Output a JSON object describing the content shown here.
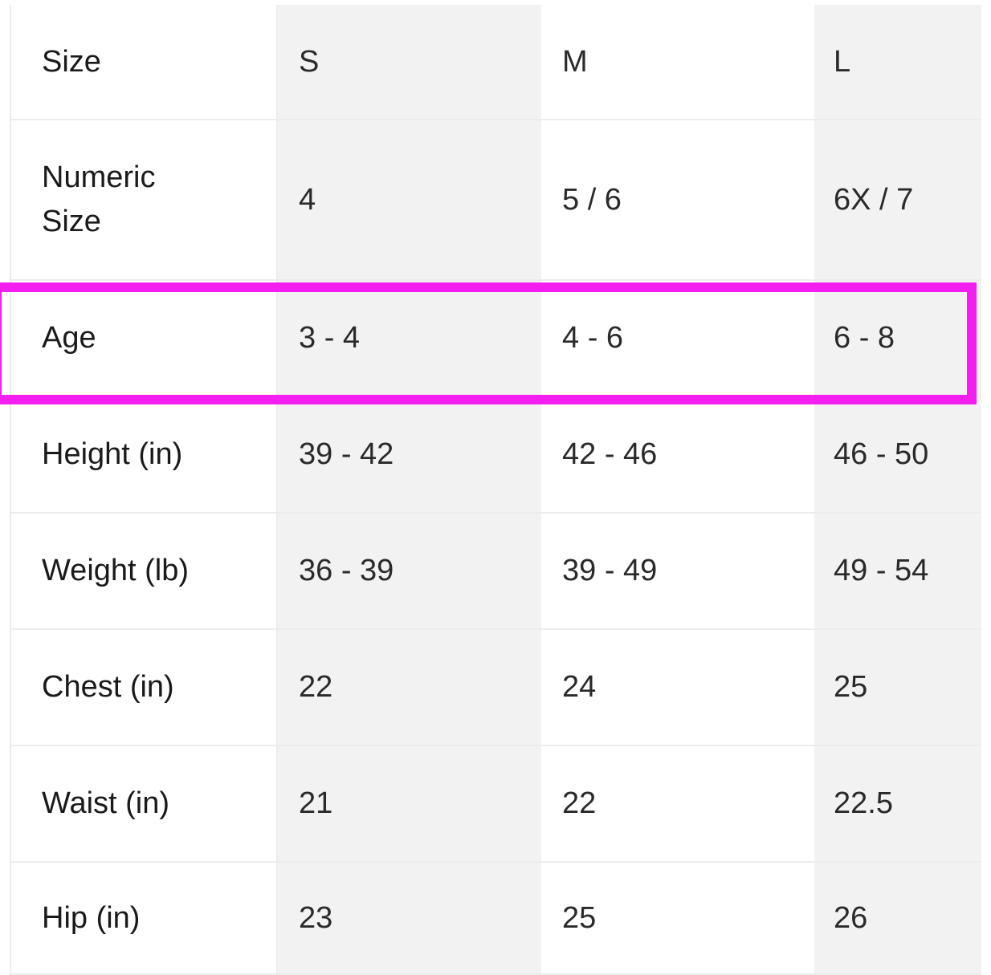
{
  "table": {
    "rows": [
      {
        "label": "Size",
        "values": [
          "S",
          "M",
          "L"
        ]
      },
      {
        "label": "Numeric Size",
        "values": [
          "4",
          "5 / 6",
          "6X / 7"
        ]
      },
      {
        "label": "Age",
        "values": [
          "3 - 4",
          "4 - 6",
          "6 - 8"
        ]
      },
      {
        "label": "Height (in)",
        "values": [
          "39 - 42",
          "42 - 46",
          "46 - 50"
        ]
      },
      {
        "label": "Weight (lb)",
        "values": [
          "36 - 39",
          "39 - 49",
          "49 - 54"
        ]
      },
      {
        "label": "Chest (in)",
        "values": [
          "22",
          "24",
          "25"
        ]
      },
      {
        "label": "Waist (in)",
        "values": [
          "21",
          "22",
          "22.5"
        ]
      },
      {
        "label": "Hip (in)",
        "values": [
          "23",
          "25",
          "26"
        ]
      }
    ],
    "highlighted_row": "Age",
    "highlight_color": "#f21ff0"
  }
}
